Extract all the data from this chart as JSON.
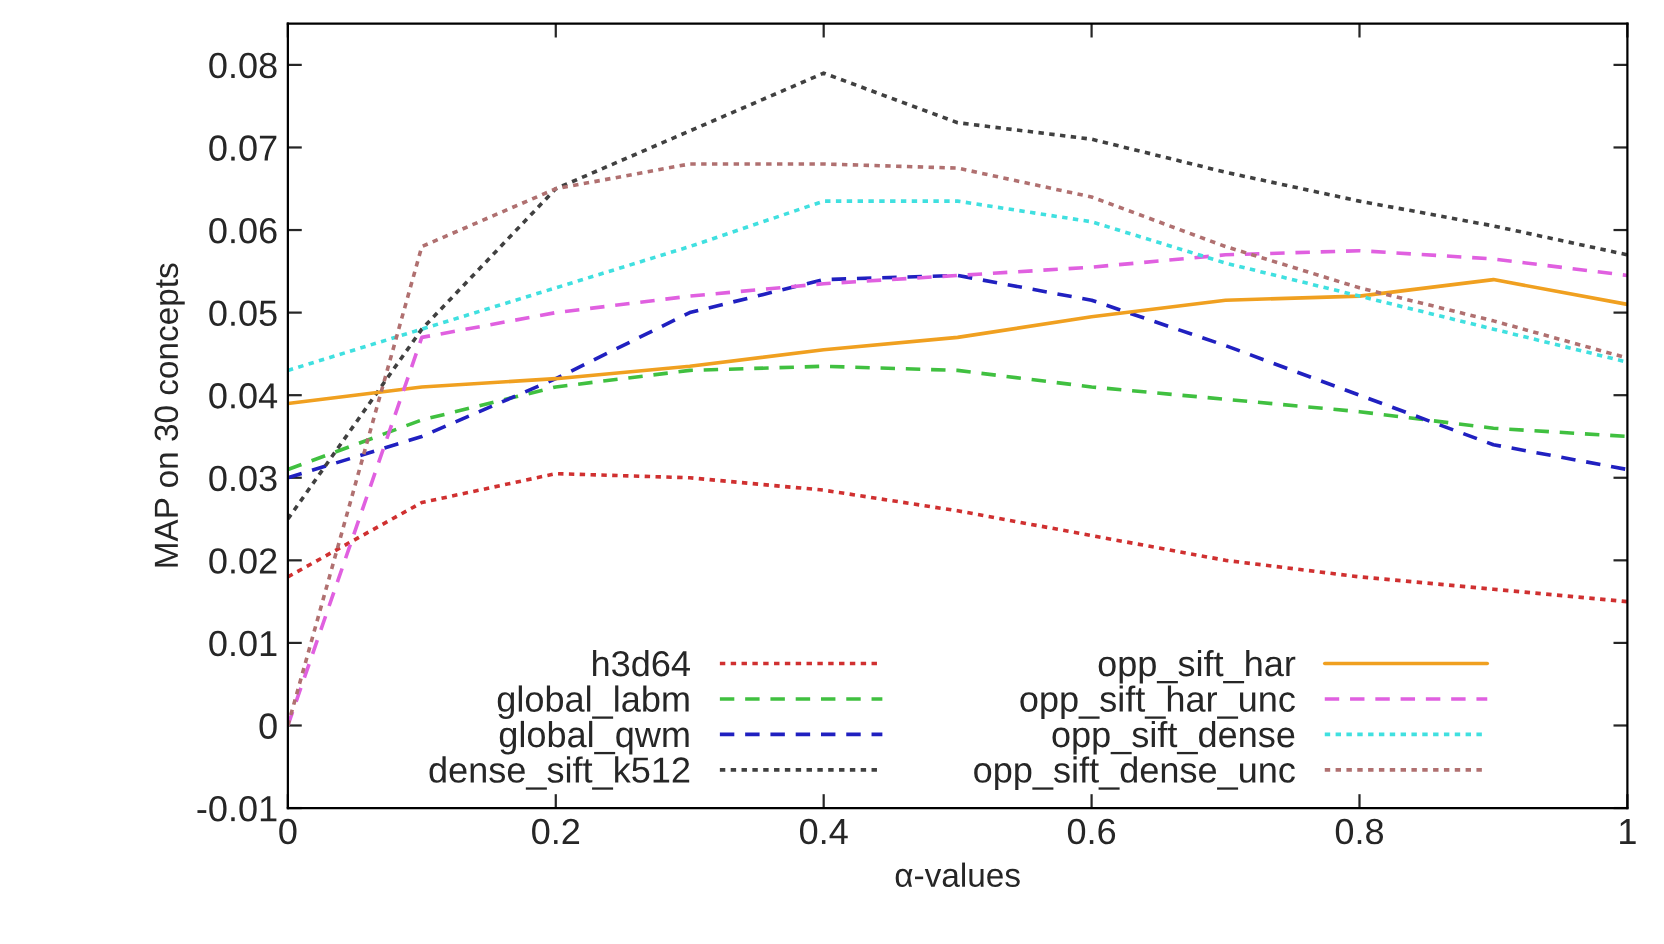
{
  "chart_data": {
    "type": "line",
    "xlabel": "α-values",
    "ylabel": "MAP on 30 concepts",
    "x": [
      0,
      0.1,
      0.2,
      0.3,
      0.4,
      0.5,
      0.6,
      0.7,
      0.8,
      0.9,
      1
    ],
    "series": [
      {
        "name": "h3d64",
        "color": "#d03030",
        "line_style": "dotted",
        "values": [
          0.018,
          0.027,
          0.0305,
          0.03,
          0.0285,
          0.026,
          0.023,
          0.02,
          0.018,
          0.0165,
          0.015
        ]
      },
      {
        "name": "global_labm",
        "color": "#40c040",
        "line_style": "dashed",
        "values": [
          0.031,
          0.037,
          0.041,
          0.043,
          0.0435,
          0.043,
          0.041,
          0.0395,
          0.038,
          0.036,
          0.035
        ]
      },
      {
        "name": "global_qwm",
        "color": "#2020c0",
        "line_style": "dashed",
        "values": [
          0.03,
          0.035,
          0.042,
          0.05,
          0.054,
          0.0545,
          0.0515,
          0.046,
          0.04,
          0.034,
          0.031
        ]
      },
      {
        "name": "dense_sift_k512",
        "color": "#404040",
        "line_style": "dotted",
        "values": [
          0.025,
          0.048,
          0.065,
          0.072,
          0.079,
          0.073,
          0.071,
          0.067,
          0.0635,
          0.0605,
          0.057
        ]
      },
      {
        "name": "opp_sift_har",
        "color": "#f0a020",
        "line_style": "solid",
        "values": [
          0.039,
          0.041,
          0.042,
          0.0435,
          0.0455,
          0.047,
          0.0495,
          0.0515,
          0.052,
          0.054,
          0.051
        ]
      },
      {
        "name": "opp_sift_har_unc",
        "color": "#e060e0",
        "line_style": "dashed",
        "values": [
          0.0,
          0.047,
          0.05,
          0.052,
          0.0535,
          0.0545,
          0.0555,
          0.057,
          0.0575,
          0.0565,
          0.0545
        ]
      },
      {
        "name": "opp_sift_dense",
        "color": "#40e0e0",
        "line_style": "dotted",
        "values": [
          0.043,
          0.048,
          0.053,
          0.058,
          0.0635,
          0.0635,
          0.061,
          0.056,
          0.052,
          0.048,
          0.044
        ]
      },
      {
        "name": "opp_sift_dense_unc",
        "color": "#b07070",
        "line_style": "dotted",
        "values": [
          0.0,
          0.058,
          0.065,
          0.068,
          0.068,
          0.0675,
          0.064,
          0.058,
          0.053,
          0.049,
          0.0445
        ]
      }
    ],
    "xlim": [
      0,
      1
    ],
    "xticks": [
      0,
      0.2,
      0.4,
      0.6,
      0.8,
      1
    ],
    "ylim": [
      -0.01,
      0.085
    ],
    "yticks": [
      -0.01,
      0,
      0.01,
      0.02,
      0.03,
      0.04,
      0.05,
      0.06,
      0.07,
      0.08
    ],
    "grid": false,
    "legend": "bottom",
    "marker": "none"
  }
}
